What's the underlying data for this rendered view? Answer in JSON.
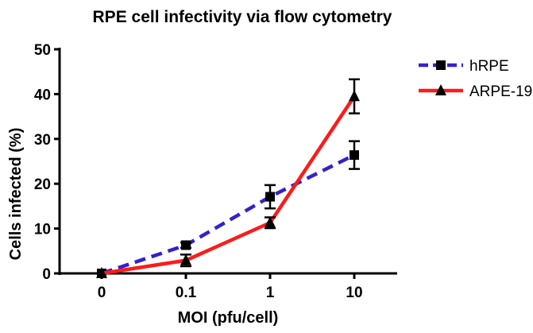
{
  "chart_data": {
    "type": "line",
    "title": "RPE cell infectivity via flow cytometry",
    "xlabel": "MOI (pfu/cell)",
    "ylabel": "Cells infected (%)",
    "categories": [
      "0",
      "0.1",
      "1",
      "10"
    ],
    "ylim": [
      0,
      50
    ],
    "yticks": [
      "0",
      "10",
      "20",
      "30",
      "40",
      "50"
    ],
    "legend_position": "top-right",
    "series": [
      {
        "name": "hRPE",
        "color": "#3322cc",
        "style": "dashed",
        "marker": "square",
        "values": [
          0,
          6.3,
          17.1,
          26.4
        ],
        "errors": [
          0.3,
          0.6,
          2.6,
          3.1
        ]
      },
      {
        "name": "ARPE-19",
        "color": "#ff1a1a",
        "style": "solid",
        "marker": "triangle",
        "values": [
          0,
          2.9,
          11.3,
          39.5
        ],
        "errors": [
          0.2,
          1.3,
          1.2,
          3.8
        ]
      }
    ]
  }
}
